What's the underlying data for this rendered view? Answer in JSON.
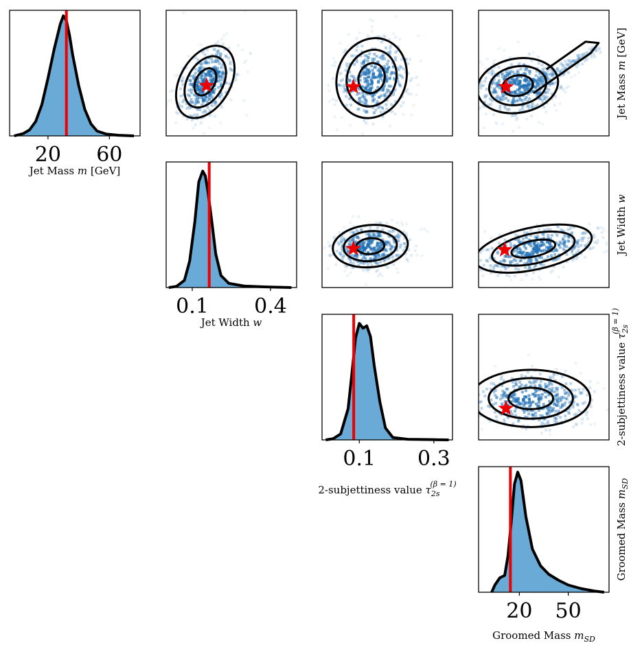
{
  "chart_data": {
    "type": "corner",
    "variables": [
      {
        "id": "m",
        "label_prefix": "Jet Mass ",
        "label_symbol": "m",
        "label_suffix": " [GeV]",
        "range": [
          -5,
          80
        ],
        "ticks": [
          20,
          60
        ],
        "tick_labels": [
          "20",
          "60"
        ],
        "truth": 32.0
      },
      {
        "id": "w",
        "label_prefix": "Jet Width ",
        "label_symbol": "w",
        "label_suffix": "",
        "range": [
          0.0,
          0.5
        ],
        "ticks": [
          0.1,
          0.4
        ],
        "tick_labels": [
          "0.1",
          "0.4"
        ],
        "truth": 0.165
      },
      {
        "id": "tau",
        "label_prefix": "2-subjettiness value ",
        "label_symbol": "τ",
        "label_sub": "2s",
        "label_sup": "(β = 1)",
        "range": [
          0.0,
          0.35
        ],
        "ticks": [
          0.1,
          0.3
        ],
        "tick_labels": [
          "0.1",
          "0.3"
        ],
        "truth": 0.085
      },
      {
        "id": "msd",
        "label_prefix": "Groomed Mass ",
        "label_symbol": "m",
        "label_sub": "SD",
        "label_suffix": "",
        "range": [
          -5,
          75
        ],
        "ticks": [
          20,
          50
        ],
        "tick_labels": [
          "20",
          "50"
        ],
        "truth": 14.5
      }
    ],
    "histograms": [
      {
        "var": "m",
        "x": [
          -2,
          4,
          8,
          12,
          16,
          20,
          24,
          28,
          30,
          32,
          34,
          36,
          40,
          44,
          48,
          52,
          58,
          66,
          76
        ],
        "y": [
          0.0,
          0.02,
          0.05,
          0.12,
          0.26,
          0.48,
          0.72,
          0.93,
          1.0,
          0.96,
          0.84,
          0.68,
          0.42,
          0.22,
          0.1,
          0.04,
          0.015,
          0.005,
          0.0
        ]
      },
      {
        "var": "w",
        "x": [
          0.01,
          0.04,
          0.07,
          0.09,
          0.11,
          0.125,
          0.14,
          0.15,
          0.16,
          0.175,
          0.19,
          0.21,
          0.24,
          0.3,
          0.4,
          0.48
        ],
        "y": [
          0.0,
          0.01,
          0.06,
          0.22,
          0.55,
          0.88,
          0.97,
          0.93,
          0.8,
          0.55,
          0.28,
          0.1,
          0.035,
          0.012,
          0.004,
          0.0
        ]
      },
      {
        "var": "tau",
        "x": [
          0.01,
          0.03,
          0.05,
          0.07,
          0.08,
          0.09,
          0.1,
          0.11,
          0.12,
          0.13,
          0.14,
          0.155,
          0.17,
          0.19,
          0.23,
          0.3,
          0.34
        ],
        "y": [
          0.0,
          0.01,
          0.05,
          0.26,
          0.55,
          0.85,
          0.97,
          0.93,
          0.95,
          0.86,
          0.62,
          0.32,
          0.1,
          0.02,
          0.005,
          0.002,
          0.0
        ]
      },
      {
        "var": "msd",
        "x": [
          3,
          5,
          8,
          11,
          13,
          15,
          17,
          19,
          21,
          24,
          28,
          33,
          38,
          44,
          50,
          58,
          66,
          72
        ],
        "y": [
          0.0,
          0.06,
          0.12,
          0.14,
          0.3,
          0.58,
          0.9,
          1.0,
          0.93,
          0.63,
          0.36,
          0.22,
          0.15,
          0.1,
          0.06,
          0.03,
          0.01,
          0.0
        ]
      }
    ],
    "truth_marker": "red-star",
    "truth_line_color": "#ee0000",
    "hist_fill_color": "#6aaad6",
    "line_color": "#000000",
    "density_color": "#1f6fb4"
  }
}
